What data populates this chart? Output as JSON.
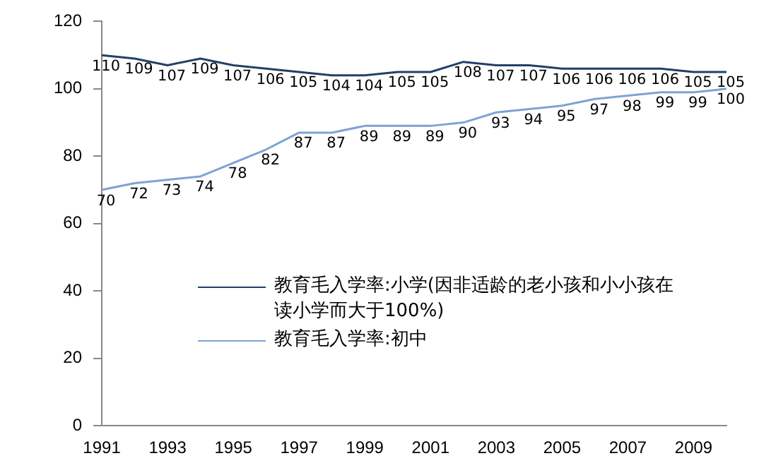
{
  "chart_data": {
    "type": "line",
    "categories": [
      "1991",
      null,
      "1993",
      null,
      "1995",
      null,
      "1997",
      null,
      "1999",
      null,
      "2001",
      null,
      "2003",
      null,
      "2005",
      null,
      "2007",
      null,
      "2009",
      null
    ],
    "series": [
      {
        "name": "教育毛入学率:小学(因非适龄的老小孩和小小孩在读小学而大于100%)",
        "color": "#243f66",
        "values": [
          110,
          109,
          107,
          109,
          107,
          106,
          105,
          104,
          104,
          105,
          105,
          108,
          107,
          107,
          106,
          106,
          106,
          106,
          105,
          105
        ]
      },
      {
        "name": "教育毛入学率:初中",
        "color": "#7ea3d4",
        "values": [
          70,
          72,
          73,
          74,
          78,
          82,
          87,
          87,
          89,
          89,
          89,
          90,
          93,
          94,
          95,
          97,
          98,
          99,
          99,
          100
        ]
      }
    ],
    "ylim": [
      0,
      120
    ],
    "yticks": [
      0,
      20,
      40,
      60,
      80,
      100,
      120
    ],
    "grid": false,
    "legend": "bottom",
    "marker": "none",
    "data_labels": true
  }
}
